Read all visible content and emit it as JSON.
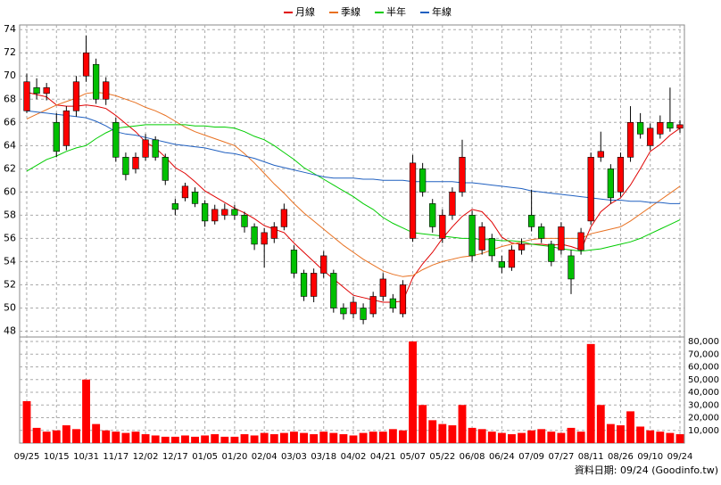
{
  "chart_data": {
    "type": "candlestick",
    "categories": [
      "09/25",
      null,
      null,
      "10/15",
      null,
      null,
      "10/31",
      null,
      null,
      "11/17",
      null,
      null,
      "12/02",
      null,
      null,
      "12/17",
      null,
      null,
      "01/05",
      null,
      null,
      "01/20",
      null,
      null,
      "02/04",
      null,
      null,
      "03/03",
      null,
      null,
      "03/18",
      null,
      null,
      "04/02",
      null,
      null,
      "04/21",
      null,
      null,
      "05/07",
      null,
      null,
      "05/22",
      null,
      null,
      "06/08",
      null,
      null,
      "06/24",
      null,
      null,
      "07/09",
      null,
      null,
      "07/27",
      null,
      null,
      "08/11",
      null,
      null,
      "08/26",
      null,
      null,
      "09/10",
      null,
      null,
      "09/24"
    ],
    "ohlc": [
      [
        67,
        70.2,
        66.8,
        69.5
      ],
      [
        69,
        69.8,
        68,
        68.5
      ],
      [
        68.5,
        69.4,
        67.9,
        69
      ],
      [
        66,
        66.8,
        63,
        63.5
      ],
      [
        64,
        67.4,
        63.6,
        67
      ],
      [
        67,
        70,
        66.5,
        69.5
      ],
      [
        70,
        73.5,
        69.5,
        72
      ],
      [
        71,
        71.5,
        67.6,
        68
      ],
      [
        68,
        69.9,
        67.5,
        69.5
      ],
      [
        66,
        66.4,
        62.6,
        63
      ],
      [
        63,
        63.4,
        61,
        61.5
      ],
      [
        62,
        63.4,
        61.6,
        63
      ],
      [
        63,
        65,
        62.7,
        64.5
      ],
      [
        64.5,
        64.8,
        62.7,
        63
      ],
      [
        63,
        63.3,
        60.6,
        61
      ],
      [
        59,
        59.4,
        58,
        58.5
      ],
      [
        59.5,
        60.8,
        59.2,
        60.5
      ],
      [
        60,
        60.4,
        58.7,
        59
      ],
      [
        59,
        59.3,
        57,
        57.5
      ],
      [
        57.5,
        58.9,
        57.2,
        58.5
      ],
      [
        58,
        59,
        57.6,
        58.5
      ],
      [
        58.5,
        58.9,
        57.6,
        58
      ],
      [
        58,
        58.3,
        56.5,
        57
      ],
      [
        57,
        57.3,
        55,
        55.5
      ],
      [
        55.5,
        56.9,
        53.5,
        56.5
      ],
      [
        56,
        57.4,
        55.6,
        57
      ],
      [
        57,
        59,
        56.7,
        58.5
      ],
      [
        55,
        55.4,
        52.6,
        53
      ],
      [
        53,
        53.3,
        50.6,
        51
      ],
      [
        51,
        53.4,
        50.5,
        53
      ],
      [
        53,
        54.9,
        52.6,
        54.5
      ],
      [
        53,
        53.3,
        49.6,
        50
      ],
      [
        50,
        50.4,
        49,
        49.5
      ],
      [
        49.5,
        51,
        49.1,
        50.5
      ],
      [
        50,
        50.4,
        48.6,
        49
      ],
      [
        49.5,
        51.4,
        49.2,
        51
      ],
      [
        51,
        53,
        50.6,
        52.5
      ],
      [
        50.8,
        51.2,
        49.6,
        50
      ],
      [
        49.5,
        52.4,
        49.2,
        52
      ],
      [
        56,
        63.2,
        55.7,
        62.5
      ],
      [
        62,
        62.5,
        59.6,
        60
      ],
      [
        59,
        59.4,
        56.5,
        57
      ],
      [
        56,
        58.5,
        55.6,
        58
      ],
      [
        58,
        60.4,
        57.6,
        60
      ],
      [
        60,
        64.5,
        59.6,
        63
      ],
      [
        58,
        58.4,
        54,
        54.5
      ],
      [
        55,
        57.4,
        54.6,
        57
      ],
      [
        56,
        56.4,
        54,
        54.5
      ],
      [
        54,
        54.5,
        53,
        53.5
      ],
      [
        53.5,
        55.4,
        53.2,
        55
      ],
      [
        55,
        56,
        54.6,
        55.5
      ],
      [
        58,
        60.2,
        56.6,
        57
      ],
      [
        57,
        57.3,
        55.6,
        56
      ],
      [
        55.5,
        55.8,
        53.6,
        54
      ],
      [
        55,
        57.4,
        54.6,
        57
      ],
      [
        54.5,
        55,
        51.2,
        52.5
      ],
      [
        55,
        56.9,
        54.6,
        56.5
      ],
      [
        57.5,
        63.4,
        57.2,
        63
      ],
      [
        63,
        65.2,
        62.6,
        63.5
      ],
      [
        62,
        62.4,
        59,
        59.5
      ],
      [
        60,
        63.4,
        59.6,
        63
      ],
      [
        63,
        67.4,
        62.6,
        66
      ],
      [
        66,
        66.8,
        64.6,
        65
      ],
      [
        64,
        65.9,
        63.6,
        65.5
      ],
      [
        65,
        66.6,
        64.6,
        66
      ],
      [
        66,
        69,
        65.2,
        65.5
      ],
      [
        65.5,
        66.2,
        65.1,
        65.8
      ]
    ],
    "up_color": "#ff0000",
    "down_color": "#00c000",
    "series": [
      {
        "name": "月線",
        "color": "#e00000",
        "values": [
          68.6,
          68.4,
          68.2,
          67.5,
          67.4,
          67.4,
          67.5,
          67.4,
          67.2,
          66.6,
          65.9,
          65.2,
          64.3,
          63.8,
          63,
          62.1,
          61.6,
          60.9,
          60.1,
          59.6,
          59.1,
          58.6,
          58.2,
          57.7,
          57.1,
          56.8,
          56.5,
          55.6,
          54.8,
          54,
          53.2,
          52.5,
          51.8,
          51.1,
          50.9,
          50.7,
          50.5,
          50.5,
          50.6,
          52.6,
          53.8,
          54.8,
          56,
          57,
          57.9,
          58.5,
          58.3,
          57.4,
          56.1,
          55.6,
          55.5,
          55.5,
          55.5,
          55.4,
          55.5,
          55.3,
          55,
          57,
          58.3,
          59,
          59.5,
          60.6,
          62,
          63.5,
          64.1,
          64.9,
          65.5
        ]
      },
      {
        "name": "季線",
        "color": "#e87020",
        "values": [
          66.3,
          66.7,
          67.1,
          67.5,
          67.8,
          68.1,
          68.5,
          68.6,
          68.5,
          68.3,
          68,
          67.7,
          67.3,
          67,
          66.6,
          66.1,
          65.6,
          65.2,
          64.9,
          64.6,
          64.3,
          64,
          63.3,
          62.5,
          61.6,
          60.7,
          59.9,
          59,
          58.2,
          57.5,
          56.8,
          56.1,
          55.4,
          54.8,
          54.2,
          53.7,
          53.2,
          52.9,
          52.7,
          52.8,
          53.3,
          53.7,
          54,
          54.2,
          54.4,
          54.5,
          54.7,
          55,
          55.3,
          55.5,
          55.7,
          55.9,
          56,
          56,
          56,
          56,
          56,
          56.4,
          56.6,
          56.8,
          57,
          57.5,
          58.1,
          58.7,
          59.3,
          59.9,
          60.5
        ]
      },
      {
        "name": "半年",
        "color": "#00cc00",
        "values": [
          61.8,
          62.3,
          62.8,
          63.1,
          63.5,
          63.8,
          64,
          64.6,
          65.1,
          65.5,
          65.6,
          65.7,
          65.8,
          65.8,
          65.8,
          65.8,
          65.8,
          65.7,
          65.7,
          65.6,
          65.6,
          65.5,
          65.2,
          64.8,
          64.5,
          64,
          63.4,
          62.8,
          62.1,
          61.6,
          61.1,
          60.6,
          60.1,
          59.6,
          59,
          58.5,
          57.8,
          57.3,
          56.9,
          56.5,
          56.4,
          56.3,
          56.2,
          56.1,
          56,
          56,
          55.9,
          55.9,
          55.8,
          55.8,
          55.7,
          55.5,
          55.4,
          55.3,
          55.1,
          55,
          54.9,
          55,
          55.1,
          55.3,
          55.5,
          55.7,
          56,
          56.4,
          56.8,
          57.2,
          57.6
        ]
      },
      {
        "name": "年線",
        "color": "#2060c0",
        "values": [
          67,
          66.9,
          66.8,
          66.7,
          66.6,
          66.5,
          66.4,
          66.1,
          65.7,
          65.2,
          65,
          64.9,
          64.7,
          64.5,
          64.3,
          64.1,
          64,
          63.9,
          63.8,
          63.6,
          63.4,
          63.3,
          63.1,
          62.9,
          62.6,
          62.3,
          62.1,
          61.9,
          61.7,
          61.5,
          61.3,
          61.2,
          61.2,
          61.2,
          61.1,
          61.1,
          61,
          61,
          61,
          60.9,
          60.9,
          60.9,
          60.9,
          60.9,
          60.8,
          60.8,
          60.7,
          60.6,
          60.5,
          60.4,
          60.3,
          60.1,
          60,
          59.9,
          59.8,
          59.7,
          59.6,
          59.5,
          59.4,
          59.3,
          59.3,
          59.2,
          59.2,
          59.1,
          59.1,
          59,
          59
        ]
      }
    ],
    "volume": {
      "color": "#ff0000",
      "values": [
        33000,
        12000,
        9000,
        10000,
        14000,
        11000,
        50000,
        15000,
        10000,
        9000,
        8000,
        9000,
        7000,
        6000,
        5000,
        5000,
        6000,
        5000,
        6000,
        7000,
        5000,
        5000,
        7000,
        6000,
        8000,
        7000,
        8000,
        9000,
        8000,
        7000,
        9000,
        8000,
        7000,
        6000,
        8000,
        9000,
        9000,
        11000,
        10000,
        80000,
        30000,
        18000,
        15000,
        14000,
        30000,
        12000,
        11000,
        9000,
        8000,
        7000,
        8000,
        10000,
        11000,
        9000,
        8000,
        12000,
        9000,
        78000,
        30000,
        15000,
        14000,
        25000,
        13000,
        10000,
        9000,
        8000,
        7000
      ],
      "ylim": [
        0,
        80000
      ],
      "yticks": [
        {
          "value": 10000,
          "label": "10,000"
        },
        {
          "value": 20000,
          "label": "20,000"
        },
        {
          "value": 30000,
          "label": "30,000"
        },
        {
          "value": 40000,
          "label": "40,000"
        },
        {
          "value": 50000,
          "label": "50,000"
        },
        {
          "value": 60000,
          "label": "60,000"
        },
        {
          "value": 70000,
          "label": "70,000"
        },
        {
          "value": 80000,
          "label": "80,000"
        }
      ]
    },
    "ylim": [
      47.5,
      74.4
    ],
    "yticks": [
      48,
      50,
      52,
      54,
      56,
      58,
      60,
      62,
      64,
      66,
      68,
      70,
      72,
      74
    ],
    "grid": true,
    "legend": "top",
    "footer": "資料日期: 09/24 (Goodinfo.tw)"
  }
}
